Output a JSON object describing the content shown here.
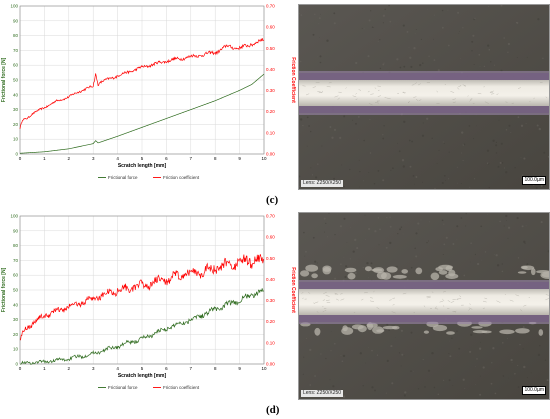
{
  "panels": [
    {
      "label": "(c)",
      "magnification": "Lens: Z250/X250",
      "scale_bar": "100.0µm",
      "micro_style": "smooth"
    },
    {
      "label": "(d)",
      "magnification": "Lens: Z250/X250",
      "scale_bar": "100.0µm",
      "micro_style": "chipped"
    }
  ],
  "chart_data": [
    {
      "type": "line",
      "title": "",
      "xlabel": "Scratch length [mm]",
      "ylabel": "Frictional force [N]",
      "y2label": "Friction Coefficient",
      "xlim": [
        0,
        10
      ],
      "ylim": [
        0,
        100
      ],
      "y2lim": [
        0,
        0.7
      ],
      "x_ticks": [
        "0",
        "1",
        "2",
        "3",
        "4",
        "5",
        "6",
        "7",
        "8",
        "9",
        "10"
      ],
      "y_ticks": [
        "0",
        "10",
        "20",
        "30",
        "40",
        "50",
        "60",
        "70",
        "80",
        "90",
        "100"
      ],
      "y2_ticks": [
        "0.00",
        "0.10",
        "0.20",
        "0.30",
        "0.40",
        "0.50",
        "0.60",
        "0.70"
      ],
      "grid": true,
      "legend": "bottom",
      "colors": {
        "force": "#2e6b1e",
        "coef": "#ff0000"
      },
      "series": [
        {
          "name": "Frictional force",
          "axis": "left",
          "x": [
            0,
            1,
            2,
            3,
            3.1,
            3.2,
            4,
            5,
            6,
            7,
            8,
            9,
            9.5,
            10
          ],
          "y": [
            0.5,
            1.5,
            3.5,
            7,
            9,
            7.5,
            12,
            18,
            24,
            30,
            36,
            43,
            47,
            54
          ]
        },
        {
          "name": "Friction coefficient",
          "axis": "right",
          "x": [
            0,
            0.1,
            0.3,
            0.5,
            1,
            1.5,
            2,
            2.5,
            3,
            3.1,
            3.2,
            3.3,
            4,
            5,
            6,
            7,
            8,
            8.5,
            9,
            9.5,
            10
          ],
          "y": [
            0.12,
            0.16,
            0.17,
            0.19,
            0.22,
            0.25,
            0.27,
            0.3,
            0.32,
            0.38,
            0.33,
            0.34,
            0.37,
            0.41,
            0.44,
            0.46,
            0.48,
            0.51,
            0.5,
            0.52,
            0.54
          ],
          "noise": 0.006
        }
      ]
    },
    {
      "type": "line",
      "title": "",
      "xlabel": "Scratch length [mm]",
      "ylabel": "Frictional force [N]",
      "y2label": "Friction Coefficient",
      "xlim": [
        0,
        10
      ],
      "ylim": [
        0,
        100
      ],
      "y2lim": [
        0,
        0.7
      ],
      "x_ticks": [
        "0",
        "1",
        "2",
        "3",
        "4",
        "5",
        "6",
        "7",
        "8",
        "9",
        "10"
      ],
      "y_ticks": [
        "0",
        "10",
        "20",
        "30",
        "40",
        "50",
        "60",
        "70",
        "80",
        "90",
        "100"
      ],
      "y2_ticks": [
        "0.00",
        "0.10",
        "0.20",
        "0.30",
        "0.40",
        "0.50",
        "0.60",
        "0.70"
      ],
      "grid": true,
      "legend": "bottom",
      "colors": {
        "force": "#2e6b1e",
        "coef": "#ff0000"
      },
      "series": [
        {
          "name": "Frictional force",
          "axis": "left",
          "x": [
            0,
            1,
            2,
            3,
            4,
            5,
            6,
            7,
            8,
            9,
            10
          ],
          "y": [
            0.5,
            1.5,
            3.5,
            7,
            12,
            17,
            24,
            30,
            37,
            43,
            50
          ],
          "noise": 1.3
        },
        {
          "name": "Friction coefficient",
          "axis": "right",
          "x": [
            0,
            0.2,
            0.5,
            1,
            1.5,
            2,
            2.5,
            3,
            3.5,
            4,
            5,
            6,
            7,
            8,
            8.5,
            9,
            9.5,
            10
          ],
          "y": [
            0.11,
            0.17,
            0.19,
            0.23,
            0.25,
            0.27,
            0.29,
            0.31,
            0.33,
            0.35,
            0.37,
            0.4,
            0.43,
            0.45,
            0.47,
            0.48,
            0.49,
            0.49
          ],
          "noise": 0.018
        }
      ]
    }
  ]
}
